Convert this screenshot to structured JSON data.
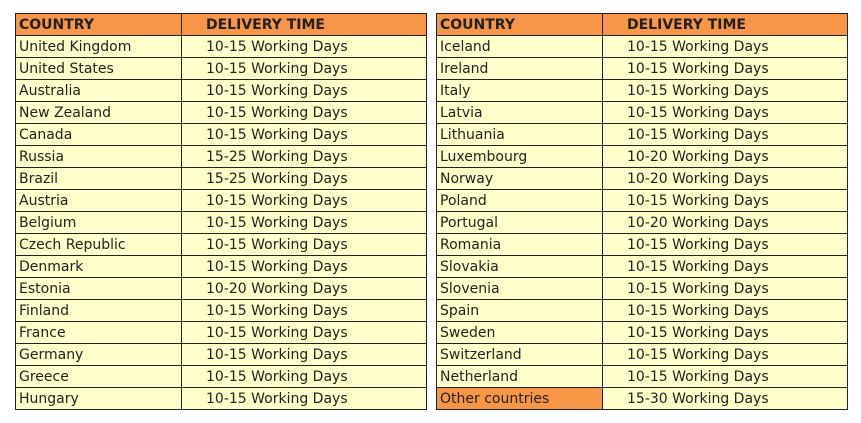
{
  "tables": [
    {
      "header": [
        "COUNTRY",
        "DELIVERY TIME"
      ],
      "rows": [
        [
          "United Kingdom",
          "10-15 Working Days"
        ],
        [
          "United States",
          "10-15 Working Days"
        ],
        [
          "Australia",
          "10-15 Working Days"
        ],
        [
          "New Zealand",
          "10-15 Working Days"
        ],
        [
          "Canada",
          "10-15 Working Days"
        ],
        [
          "Russia",
          "15-25 Working Days"
        ],
        [
          "Brazil",
          "15-25 Working Days"
        ],
        [
          "Austria",
          "10-15 Working Days"
        ],
        [
          "Belgium",
          "10-15 Working Days"
        ],
        [
          "Czech Republic",
          "10-15 Working Days"
        ],
        [
          "Denmark",
          "10-15 Working Days"
        ],
        [
          "Estonia",
          "10-20 Working Days"
        ],
        [
          "Finland",
          "10-15 Working Days"
        ],
        [
          "France",
          "10-15 Working Days"
        ],
        [
          "Germany",
          "10-15 Working Days"
        ],
        [
          "Greece",
          "10-15 Working Days"
        ],
        [
          "Hungary",
          "10-15 Working Days"
        ]
      ]
    },
    {
      "header": [
        "COUNTRY",
        "DELIVERY TIME"
      ],
      "rows": [
        [
          "Iceland",
          "10-15 Working Days"
        ],
        [
          "Ireland",
          "10-15 Working Days"
        ],
        [
          "Italy",
          "10-15 Working Days"
        ],
        [
          "Latvia",
          "10-15 Working Days"
        ],
        [
          "Lithuania",
          "10-15 Working Days"
        ],
        [
          "Luxembourg",
          "10-20 Working Days"
        ],
        [
          "Norway",
          "10-20 Working Days"
        ],
        [
          "Poland",
          "10-15 Working Days"
        ],
        [
          "Portugal",
          "10-20 Working Days"
        ],
        [
          "Romania",
          "10-15 Working Days"
        ],
        [
          "Slovakia",
          "10-15 Working Days"
        ],
        [
          "Slovenia",
          "10-15 Working Days"
        ],
        [
          "Spain",
          "10-15 Working Days"
        ],
        [
          "Sweden",
          "10-15 Working Days"
        ],
        [
          "Switzerland",
          "10-15 Working Days"
        ],
        [
          "Netherland",
          "10-15 Working Days"
        ],
        [
          "Other countries",
          "15-30 Working Days"
        ]
      ]
    }
  ]
}
